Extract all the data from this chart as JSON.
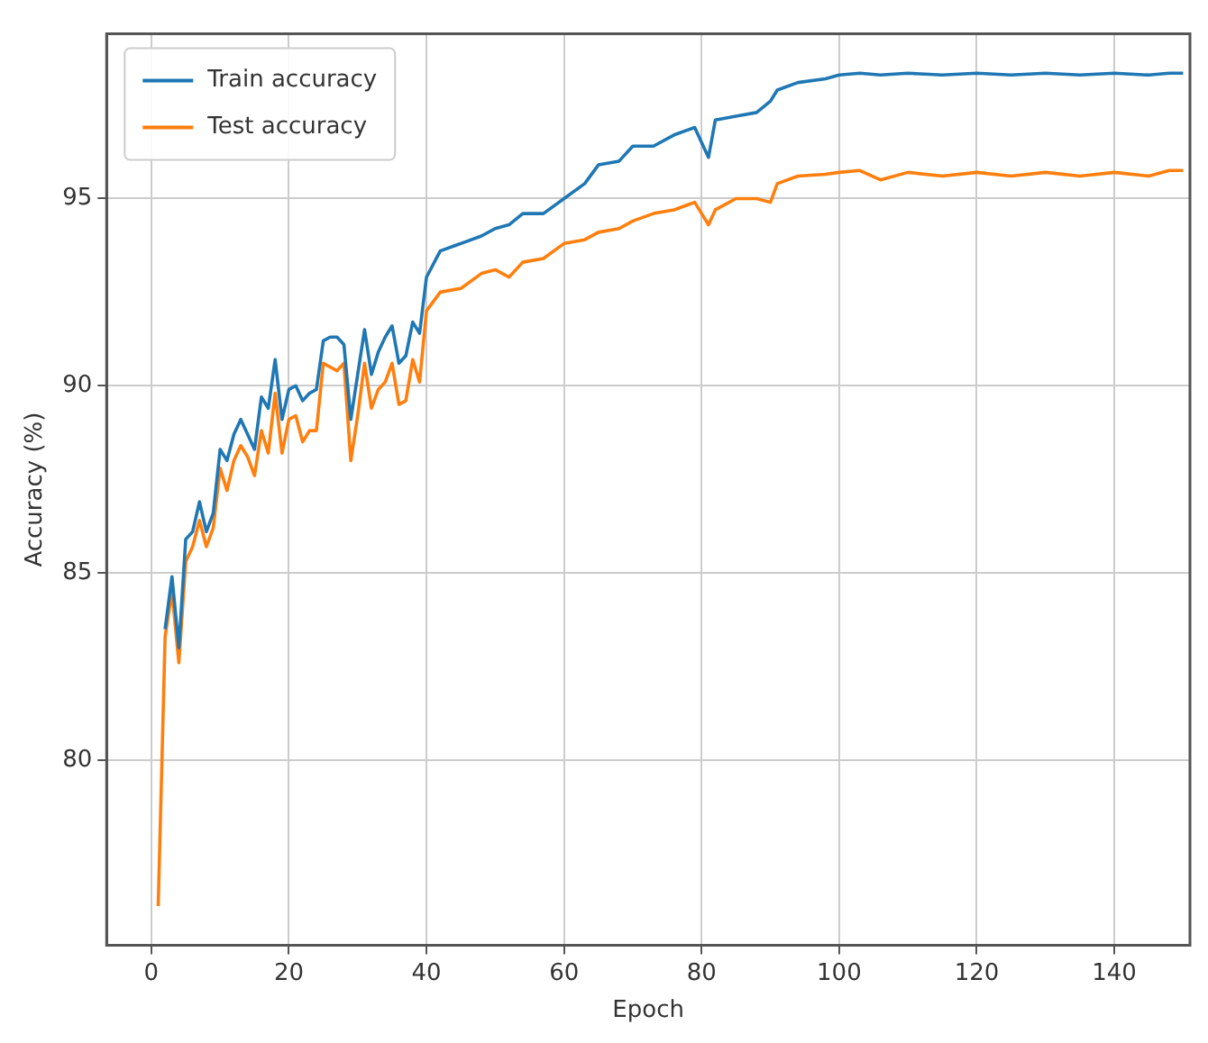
{
  "chart_data": {
    "type": "line",
    "xlabel": "Epoch",
    "ylabel": "Accuracy (%)",
    "x": [
      1,
      2,
      3,
      4,
      5,
      6,
      7,
      8,
      9,
      10,
      11,
      12,
      13,
      14,
      15,
      16,
      17,
      18,
      19,
      20,
      21,
      22,
      23,
      24,
      25,
      26,
      27,
      28,
      29,
      30,
      31,
      32,
      33,
      34,
      35,
      36,
      37,
      38,
      39,
      40,
      42,
      45,
      48,
      50,
      52,
      54,
      57,
      60,
      63,
      65,
      68,
      70,
      73,
      76,
      79,
      80,
      81,
      82,
      85,
      88,
      90,
      91,
      94,
      98,
      100,
      103,
      106,
      110,
      115,
      120,
      125,
      130,
      135,
      140,
      145,
      148,
      150
    ],
    "series": [
      {
        "name": "Train accuracy",
        "color": "#1f77b4",
        "values": [
          null,
          83.5,
          84.9,
          83.0,
          85.9,
          86.1,
          86.9,
          86.1,
          86.6,
          88.3,
          88.0,
          88.7,
          89.1,
          88.7,
          88.3,
          89.7,
          89.4,
          90.7,
          89.1,
          89.9,
          90.0,
          89.6,
          89.8,
          89.9,
          91.2,
          91.3,
          91.3,
          91.1,
          89.1,
          90.3,
          91.5,
          90.3,
          90.9,
          91.3,
          91.6,
          90.6,
          90.8,
          91.7,
          91.4,
          92.9,
          93.6,
          93.8,
          94.0,
          94.2,
          94.3,
          94.6,
          94.6,
          95.0,
          95.4,
          95.9,
          96.0,
          96.4,
          96.4,
          96.7,
          96.9,
          96.5,
          96.1,
          97.1,
          97.2,
          97.3,
          97.6,
          97.9,
          98.1,
          98.2,
          98.3,
          98.35,
          98.3,
          98.35,
          98.3,
          98.35,
          98.3,
          98.35,
          98.3,
          98.35,
          98.3,
          98.35,
          98.35
        ]
      },
      {
        "name": "Test accuracy",
        "color": "#ff7f0e",
        "values": [
          76.1,
          83.3,
          84.5,
          82.6,
          85.3,
          85.7,
          86.4,
          85.7,
          86.2,
          87.8,
          87.2,
          88.0,
          88.4,
          88.1,
          87.6,
          88.8,
          88.2,
          89.8,
          88.2,
          89.1,
          89.2,
          88.5,
          88.8,
          88.8,
          90.6,
          90.5,
          90.4,
          90.6,
          88.0,
          89.2,
          90.6,
          89.4,
          89.9,
          90.1,
          90.6,
          89.5,
          89.6,
          90.7,
          90.1,
          92.0,
          92.5,
          92.6,
          93.0,
          93.1,
          92.9,
          93.3,
          93.4,
          93.8,
          93.9,
          94.1,
          94.2,
          94.4,
          94.6,
          94.7,
          94.9,
          94.6,
          94.3,
          94.7,
          95.0,
          95.0,
          94.9,
          95.4,
          95.6,
          95.65,
          95.7,
          95.75,
          95.5,
          95.7,
          95.6,
          95.7,
          95.6,
          95.7,
          95.6,
          95.7,
          95.6,
          95.75,
          95.75
        ]
      }
    ],
    "xlim": [
      -6.5,
      151
    ],
    "xticks": [
      0,
      20,
      40,
      60,
      80,
      100,
      120,
      140
    ],
    "ylim": [
      75.05,
      99.4
    ],
    "yticks": [
      80,
      85,
      90,
      95
    ],
    "grid": true,
    "legend": "top left",
    "marker": "none",
    "line_style": "solid"
  }
}
